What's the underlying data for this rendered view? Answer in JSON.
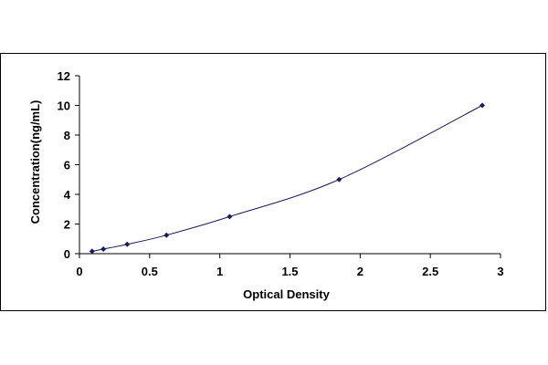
{
  "chart_data": {
    "type": "scatter",
    "xlabel": "Optical Density",
    "ylabel": "Concentration(ng/mL)",
    "xlim": [
      0,
      3
    ],
    "ylim": [
      0,
      12
    ],
    "x_ticks": [
      "0",
      "0.5",
      "1",
      "1.5",
      "2",
      "2.5",
      "3"
    ],
    "y_ticks": [
      "0",
      "2",
      "4",
      "6",
      "8",
      "10",
      "12"
    ],
    "grid": false,
    "fit_line": true,
    "points": [
      {
        "x": 0.09,
        "y": 0.16
      },
      {
        "x": 0.17,
        "y": 0.31
      },
      {
        "x": 0.34,
        "y": 0.63
      },
      {
        "x": 0.62,
        "y": 1.25
      },
      {
        "x": 1.07,
        "y": 2.5
      },
      {
        "x": 1.85,
        "y": 5.0
      },
      {
        "x": 2.87,
        "y": 10.0
      }
    ],
    "colors": {
      "marker": "#1a1a5e",
      "line": "#1a1a5e",
      "axis": "#000000"
    }
  }
}
